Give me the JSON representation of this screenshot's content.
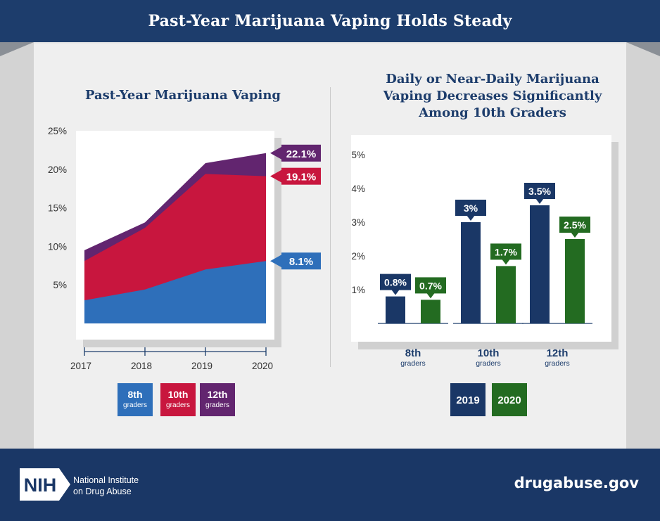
{
  "banner": {
    "title": "Past-Year Marijuana Vaping Holds Steady"
  },
  "colors": {
    "navy": "#1d3d6c",
    "grade8": "#2e6fba",
    "grade10": "#c8163e",
    "grade12": "#62256f",
    "year2019": "#1a3766",
    "year2020": "#236b21"
  },
  "chart_data": [
    {
      "type": "area",
      "title": "Past-Year Marijuana Vaping",
      "x": [
        "2017",
        "2018",
        "2019",
        "2020"
      ],
      "ylim": [
        0,
        25
      ],
      "yticks": [
        "5%",
        "10%",
        "15%",
        "20%",
        "25%"
      ],
      "stacked": false,
      "series": [
        {
          "name": "8th graders",
          "values": [
            3.0,
            4.4,
            7.0,
            8.1
          ],
          "color": "#2e6fba",
          "end_label": "8.1%"
        },
        {
          "name": "10th graders",
          "values": [
            8.1,
            12.4,
            19.4,
            19.1
          ],
          "color": "#c8163e",
          "end_label": "19.1%"
        },
        {
          "name": "12th graders",
          "values": [
            9.5,
            13.1,
            20.8,
            22.1
          ],
          "color": "#62256f",
          "end_label": "22.1%"
        }
      ],
      "legend": [
        {
          "grade": "8th",
          "sub": "graders",
          "color": "#2e6fba"
        },
        {
          "grade": "10th",
          "sub": "graders",
          "color": "#c8163e"
        },
        {
          "grade": "12th",
          "sub": "graders",
          "color": "#62256f"
        }
      ],
      "legend_position": "bottom"
    },
    {
      "type": "bar",
      "title_lines": [
        "Daily or Near-Daily Marijuana",
        "Vaping Decreases Significantly",
        "Among 10th Graders"
      ],
      "categories": [
        {
          "grade": "8th",
          "sub": "graders"
        },
        {
          "grade": "10th",
          "sub": "graders"
        },
        {
          "grade": "12th",
          "sub": "graders"
        }
      ],
      "ylim": [
        0,
        5
      ],
      "yticks": [
        "1%",
        "2%",
        "3%",
        "4%",
        "5%"
      ],
      "series": [
        {
          "name": "2019",
          "values": [
            0.8,
            3.0,
            3.5
          ],
          "labels": [
            "0.8%",
            "3%",
            "3.5%"
          ],
          "color": "#1a3766"
        },
        {
          "name": "2020",
          "values": [
            0.7,
            1.7,
            2.5
          ],
          "labels": [
            "0.7%",
            "1.7%",
            "2.5%"
          ],
          "color": "#236b21"
        }
      ],
      "legend_position": "bottom"
    }
  ],
  "footer": {
    "logo_text": "NIH",
    "org_line1": "National Institute",
    "org_line2": "on Drug Abuse",
    "site": "drugabuse.gov"
  }
}
